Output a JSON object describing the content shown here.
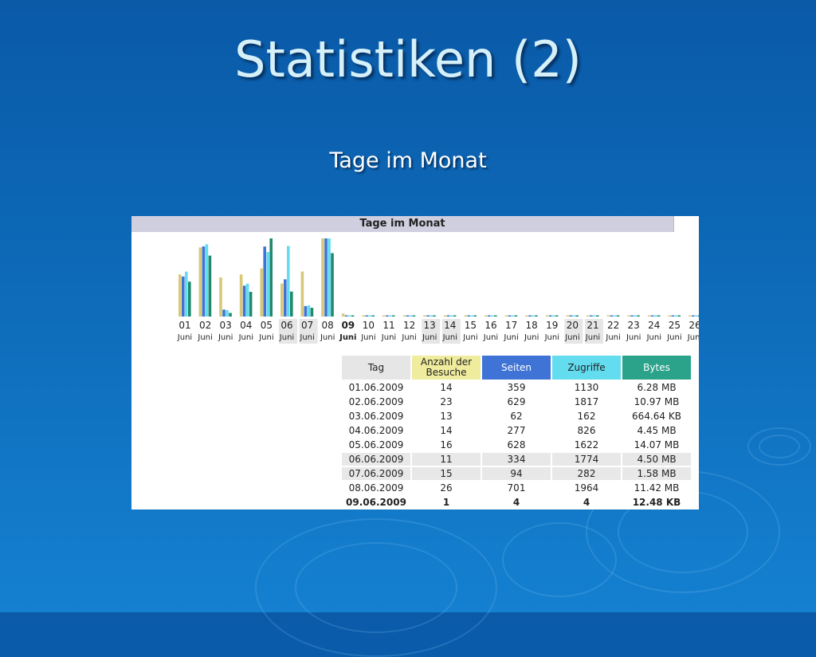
{
  "slide": {
    "title": "Statistiken (2)",
    "subtitle": "Tage im Monat"
  },
  "panel": {
    "header": "Tage im Monat"
  },
  "chart_data": {
    "type": "bar",
    "title": "Tage im Monat",
    "categories": [
      "01",
      "02",
      "03",
      "04",
      "05",
      "06",
      "07",
      "08",
      "09",
      "10",
      "11",
      "12",
      "13",
      "14",
      "15",
      "16",
      "17",
      "18",
      "19",
      "20",
      "21",
      "22",
      "23",
      "24",
      "25",
      "26"
    ],
    "month_label": "Juni",
    "weekend_days": [
      "06",
      "07",
      "13",
      "14",
      "20",
      "21"
    ],
    "current_day": "09",
    "series": [
      {
        "name": "Anzahl der Besuche",
        "color": "#d8c878",
        "values": [
          14,
          23,
          13,
          14,
          16,
          11,
          15,
          26,
          1,
          0,
          0,
          0,
          0,
          0,
          0,
          0,
          0,
          0,
          0,
          0,
          0,
          0,
          0,
          0,
          0,
          0
        ]
      },
      {
        "name": "Seiten",
        "color": "#3f74d6",
        "values": [
          359,
          629,
          62,
          277,
          628,
          334,
          94,
          701,
          4,
          0,
          0,
          0,
          0,
          0,
          0,
          0,
          0,
          0,
          0,
          0,
          0,
          0,
          0,
          0,
          0,
          0
        ]
      },
      {
        "name": "Zugriffe",
        "color": "#62dcee",
        "values": [
          1130,
          1817,
          162,
          826,
          1622,
          1774,
          282,
          1964,
          4,
          0,
          0,
          0,
          0,
          0,
          0,
          0,
          0,
          0,
          0,
          0,
          0,
          0,
          0,
          0,
          0,
          0
        ]
      },
      {
        "name": "Bytes",
        "color": "#1f8a6e",
        "values": [
          6.28,
          10.97,
          0.65,
          4.45,
          14.07,
          4.5,
          1.58,
          11.42,
          0.012,
          0,
          0,
          0,
          0,
          0,
          0,
          0,
          0,
          0,
          0,
          0,
          0,
          0,
          0,
          0,
          0,
          0
        ]
      }
    ]
  },
  "table": {
    "headers": {
      "tag": "Tag",
      "visits": "Anzahl der Besuche",
      "pages": "Seiten",
      "hits": "Zugriffe",
      "bytes": "Bytes"
    },
    "rows": [
      {
        "tag": "01.06.2009",
        "visits": "14",
        "pages": "359",
        "hits": "1130",
        "bytes": "6.28 MB"
      },
      {
        "tag": "02.06.2009",
        "visits": "23",
        "pages": "629",
        "hits": "1817",
        "bytes": "10.97 MB"
      },
      {
        "tag": "03.06.2009",
        "visits": "13",
        "pages": "62",
        "hits": "162",
        "bytes": "664.64 KB"
      },
      {
        "tag": "04.06.2009",
        "visits": "14",
        "pages": "277",
        "hits": "826",
        "bytes": "4.45 MB"
      },
      {
        "tag": "05.06.2009",
        "visits": "16",
        "pages": "628",
        "hits": "1622",
        "bytes": "14.07 MB"
      },
      {
        "tag": "06.06.2009",
        "visits": "11",
        "pages": "334",
        "hits": "1774",
        "bytes": "4.50 MB"
      },
      {
        "tag": "07.06.2009",
        "visits": "15",
        "pages": "94",
        "hits": "282",
        "bytes": "1.58 MB"
      },
      {
        "tag": "08.06.2009",
        "visits": "26",
        "pages": "701",
        "hits": "1964",
        "bytes": "11.42 MB"
      },
      {
        "tag": "09.06.2009",
        "visits": "1",
        "pages": "4",
        "hits": "4",
        "bytes": "12.48 KB"
      }
    ]
  }
}
